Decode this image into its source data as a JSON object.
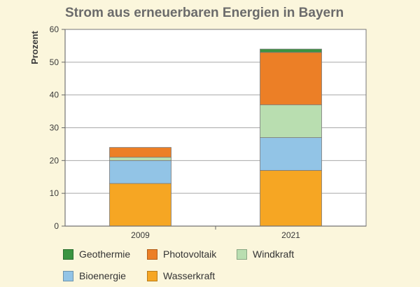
{
  "chart_data": {
    "type": "bar",
    "stacked": true,
    "title": "Strom aus erneuerbaren Energien in Bayern",
    "ylabel": "Prozent",
    "xlabel": "",
    "ylim": [
      0,
      60
    ],
    "yticks": [
      "0",
      "10",
      "20",
      "30",
      "40",
      "50",
      "60"
    ],
    "grid": true,
    "legend_position": "bottom",
    "categories": [
      "2009",
      "2021"
    ],
    "series": [
      {
        "name": "Wasserkraft",
        "color": "#f6a623",
        "values": [
          13,
          17
        ]
      },
      {
        "name": "Bioenergie",
        "color": "#92c4e6",
        "values": [
          7,
          10
        ]
      },
      {
        "name": "Windkraft",
        "color": "#b9deb0",
        "values": [
          1,
          10
        ]
      },
      {
        "name": "Photovoltaik",
        "color": "#ec7f26",
        "values": [
          3,
          16
        ]
      },
      {
        "name": "Geothermie",
        "color": "#3a9441",
        "values": [
          0,
          1
        ]
      }
    ],
    "legend_order": [
      "Geothermie",
      "Photovoltaik",
      "Windkraft",
      "Bioenergie",
      "Wasserkraft"
    ]
  }
}
